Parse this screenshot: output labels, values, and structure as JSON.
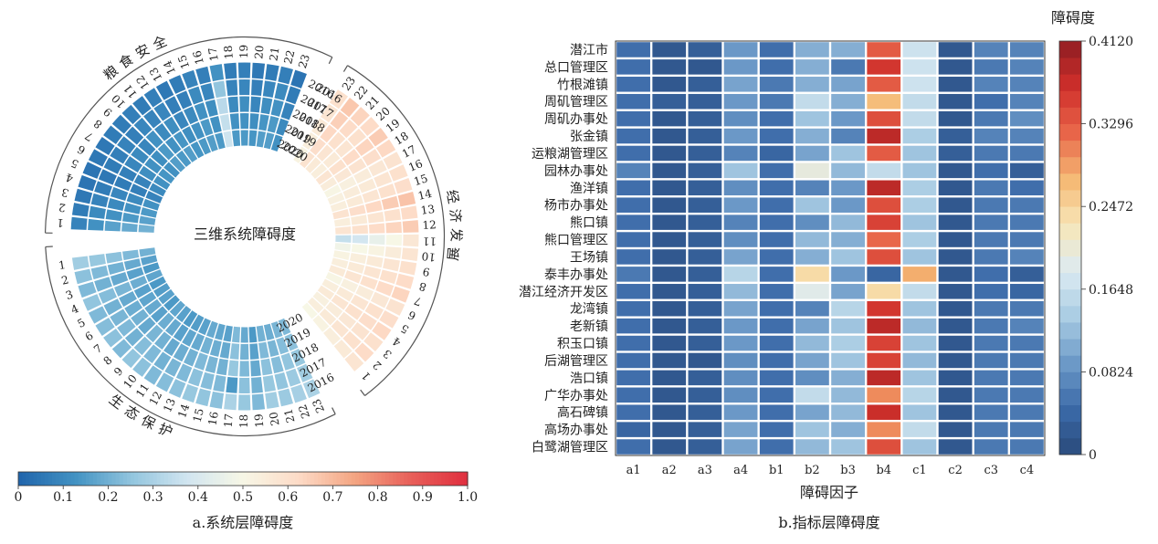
{
  "left_panel": {
    "center_title": "三维系统障碍度",
    "caption": "a.系统层障碍度",
    "colorbar_ticks": [
      "0",
      "0.1",
      "0.2",
      "0.3",
      "0.4",
      "0.5",
      "0.6",
      "0.7",
      "0.8",
      "0.9",
      "1.0"
    ],
    "sector_titles": [
      "粮食安全",
      "经济发展",
      "生态保护"
    ],
    "year_labels": [
      "2016",
      "2017",
      "2018",
      "2019",
      "2020"
    ],
    "colormap": [
      "#2166ac",
      "#4393c3",
      "#92c5de",
      "#d1e5f0",
      "#f7f7e6",
      "#fddbc7",
      "#f4a582",
      "#e8605a",
      "#e0303f"
    ]
  },
  "right_panel": {
    "caption": "b.指标层障碍度",
    "xlabel": "障碍因子",
    "colorbar_title": "障碍度",
    "colorbar_ticks": [
      "0",
      "0.0824",
      "0.1648",
      "0.2472",
      "0.3296",
      "0.4120"
    ],
    "colormap": [
      "#2a4a7b",
      "#3b6aa8",
      "#6d9ac8",
      "#a9cce3",
      "#dcebf2",
      "#f7e6b8",
      "#f5b873",
      "#e8664a",
      "#cf2f2b",
      "#8f1d22"
    ]
  },
  "chart_data": [
    {
      "type": "heatmap",
      "title": "a.系统层障碍度",
      "subtype": "circular heatmap",
      "sectors": [
        "粮食安全",
        "经济发展",
        "生态保护"
      ],
      "segments": [
        "1",
        "2",
        "3",
        "4",
        "5",
        "6",
        "7",
        "8",
        "9",
        "10",
        "11",
        "12",
        "13",
        "14",
        "15",
        "16",
        "17",
        "18",
        "19",
        "20",
        "21",
        "22",
        "23"
      ],
      "rings": [
        "2016",
        "2017",
        "2018",
        "2019",
        "2020"
      ],
      "value_range": [
        0,
        1.0
      ],
      "values": {
        "粮食安全": [
          [
            0.08,
            0.06,
            0.05,
            0.04,
            0.04,
            0.05,
            0.05,
            0.06,
            0.06,
            0.07,
            0.06,
            0.07,
            0.05,
            0.06,
            0.08,
            0.07,
            0.12,
            0.06,
            0.07,
            0.05,
            0.06,
            0.07,
            0.04
          ],
          [
            0.12,
            0.1,
            0.08,
            0.06,
            0.05,
            0.06,
            0.07,
            0.08,
            0.07,
            0.09,
            0.08,
            0.09,
            0.07,
            0.07,
            0.1,
            0.09,
            0.25,
            0.08,
            0.09,
            0.07,
            0.09,
            0.1,
            0.06
          ],
          [
            0.16,
            0.12,
            0.1,
            0.09,
            0.06,
            0.07,
            0.09,
            0.1,
            0.09,
            0.12,
            0.1,
            0.11,
            0.09,
            0.1,
            0.12,
            0.11,
            0.33,
            0.1,
            0.11,
            0.09,
            0.11,
            0.12,
            0.08
          ],
          [
            0.18,
            0.14,
            0.12,
            0.1,
            0.07,
            0.08,
            0.11,
            0.12,
            0.11,
            0.14,
            0.12,
            0.13,
            0.11,
            0.12,
            0.14,
            0.12,
            0.35,
            0.12,
            0.12,
            0.11,
            0.13,
            0.14,
            0.1
          ],
          [
            0.2,
            0.16,
            0.14,
            0.12,
            0.08,
            0.1,
            0.12,
            0.13,
            0.12,
            0.15,
            0.14,
            0.15,
            0.13,
            0.14,
            0.15,
            0.14,
            0.37,
            0.14,
            0.14,
            0.13,
            0.15,
            0.15,
            0.12
          ]
        ],
        "经济发展": [
          [
            0.58,
            0.62,
            0.6,
            0.63,
            0.61,
            0.59,
            0.64,
            0.62,
            0.6,
            0.58,
            0.57,
            0.66,
            0.62,
            0.68,
            0.61,
            0.6,
            0.59,
            0.63,
            0.66,
            0.62,
            0.64,
            0.67,
            0.6
          ],
          [
            0.56,
            0.6,
            0.59,
            0.61,
            0.6,
            0.57,
            0.62,
            0.6,
            0.58,
            0.55,
            0.5,
            0.64,
            0.6,
            0.66,
            0.6,
            0.58,
            0.57,
            0.61,
            0.64,
            0.6,
            0.62,
            0.65,
            0.58
          ],
          [
            0.54,
            0.58,
            0.57,
            0.6,
            0.58,
            0.55,
            0.6,
            0.58,
            0.56,
            0.52,
            0.45,
            0.62,
            0.58,
            0.63,
            0.58,
            0.56,
            0.55,
            0.59,
            0.62,
            0.58,
            0.6,
            0.63,
            0.56
          ],
          [
            0.52,
            0.56,
            0.55,
            0.58,
            0.56,
            0.53,
            0.58,
            0.56,
            0.54,
            0.5,
            0.38,
            0.6,
            0.56,
            0.61,
            0.56,
            0.55,
            0.53,
            0.57,
            0.6,
            0.56,
            0.58,
            0.61,
            0.54
          ],
          [
            0.5,
            0.54,
            0.53,
            0.56,
            0.54,
            0.51,
            0.56,
            0.54,
            0.52,
            0.48,
            0.35,
            0.58,
            0.54,
            0.59,
            0.54,
            0.53,
            0.51,
            0.55,
            0.58,
            0.54,
            0.56,
            0.59,
            0.52
          ]
        ],
        "生态保护": [
          [
            0.28,
            0.24,
            0.22,
            0.25,
            0.22,
            0.23,
            0.24,
            0.22,
            0.25,
            0.24,
            0.22,
            0.23,
            0.24,
            0.26,
            0.25,
            0.24,
            0.3,
            0.26,
            0.22,
            0.28,
            0.27,
            0.29,
            0.3
          ],
          [
            0.26,
            0.22,
            0.2,
            0.23,
            0.2,
            0.21,
            0.22,
            0.2,
            0.23,
            0.22,
            0.2,
            0.21,
            0.22,
            0.24,
            0.23,
            0.22,
            0.14,
            0.24,
            0.2,
            0.26,
            0.25,
            0.27,
            0.28
          ],
          [
            0.24,
            0.2,
            0.18,
            0.21,
            0.18,
            0.19,
            0.2,
            0.18,
            0.21,
            0.2,
            0.18,
            0.19,
            0.2,
            0.22,
            0.21,
            0.2,
            0.26,
            0.22,
            0.18,
            0.24,
            0.23,
            0.25,
            0.26
          ],
          [
            0.22,
            0.18,
            0.16,
            0.19,
            0.16,
            0.17,
            0.18,
            0.16,
            0.19,
            0.18,
            0.16,
            0.17,
            0.18,
            0.2,
            0.19,
            0.18,
            0.24,
            0.2,
            0.16,
            0.22,
            0.21,
            0.23,
            0.24
          ],
          [
            0.2,
            0.16,
            0.14,
            0.17,
            0.14,
            0.15,
            0.16,
            0.14,
            0.17,
            0.16,
            0.14,
            0.15,
            0.16,
            0.18,
            0.17,
            0.16,
            0.22,
            0.18,
            0.14,
            0.2,
            0.19,
            0.21,
            0.22
          ]
        ]
      }
    },
    {
      "type": "heatmap",
      "title": "b.指标层障碍度",
      "xlabel": "障碍因子",
      "legend_title": "障碍度",
      "value_range": [
        0,
        0.412
      ],
      "columns": [
        "a1",
        "a2",
        "a3",
        "a4",
        "b1",
        "b2",
        "b3",
        "b4",
        "c1",
        "c2",
        "c3",
        "c4"
      ],
      "rows": [
        "潜江市",
        "总口管理区",
        "竹根滩镇",
        "周矶管理区",
        "周矶办事处",
        "张金镇",
        "运粮湖管理区",
        "园林办事处",
        "渔洋镇",
        "杨市办事处",
        "熊口镇",
        "熊口管理区",
        "王场镇",
        "泰丰办事处",
        "潜江经济开发区",
        "龙湾镇",
        "老新镇",
        "积玉口镇",
        "后湖管理区",
        "浩口镇",
        "广华办事处",
        "高石碑镇",
        "高场办事处",
        "白鹭湖管理区"
      ],
      "values": [
        [
          0.05,
          0.02,
          0.03,
          0.09,
          0.05,
          0.11,
          0.11,
          0.33,
          0.17,
          0.02,
          0.07,
          0.07
        ],
        [
          0.05,
          0.02,
          0.02,
          0.09,
          0.05,
          0.11,
          0.06,
          0.36,
          0.17,
          0.02,
          0.06,
          0.07
        ],
        [
          0.05,
          0.02,
          0.03,
          0.1,
          0.06,
          0.11,
          0.1,
          0.33,
          0.17,
          0.02,
          0.07,
          0.07
        ],
        [
          0.05,
          0.03,
          0.03,
          0.09,
          0.06,
          0.16,
          0.11,
          0.27,
          0.16,
          0.02,
          0.05,
          0.07
        ],
        [
          0.05,
          0.02,
          0.03,
          0.08,
          0.05,
          0.13,
          0.09,
          0.34,
          0.16,
          0.02,
          0.06,
          0.08
        ],
        [
          0.05,
          0.02,
          0.03,
          0.09,
          0.05,
          0.11,
          0.07,
          0.38,
          0.14,
          0.03,
          0.07,
          0.07
        ],
        [
          0.05,
          0.02,
          0.03,
          0.07,
          0.04,
          0.1,
          0.13,
          0.33,
          0.13,
          0.03,
          0.06,
          0.06
        ],
        [
          0.07,
          0.02,
          0.03,
          0.13,
          0.05,
          0.2,
          0.12,
          0.16,
          0.13,
          0.02,
          0.05,
          0.03
        ],
        [
          0.05,
          0.02,
          0.03,
          0.08,
          0.05,
          0.07,
          0.09,
          0.38,
          0.14,
          0.02,
          0.06,
          0.05
        ],
        [
          0.05,
          0.02,
          0.03,
          0.09,
          0.05,
          0.13,
          0.09,
          0.34,
          0.14,
          0.02,
          0.06,
          0.06
        ],
        [
          0.05,
          0.02,
          0.03,
          0.07,
          0.05,
          0.08,
          0.12,
          0.35,
          0.13,
          0.02,
          0.06,
          0.06
        ],
        [
          0.05,
          0.02,
          0.03,
          0.08,
          0.05,
          0.12,
          0.11,
          0.32,
          0.14,
          0.02,
          0.06,
          0.06
        ],
        [
          0.05,
          0.02,
          0.03,
          0.1,
          0.05,
          0.11,
          0.13,
          0.34,
          0.13,
          0.02,
          0.06,
          0.07
        ],
        [
          0.06,
          0.02,
          0.03,
          0.15,
          0.05,
          0.24,
          0.09,
          0.04,
          0.28,
          0.02,
          0.05,
          0.03
        ],
        [
          0.05,
          0.02,
          0.03,
          0.12,
          0.05,
          0.19,
          0.1,
          0.24,
          0.16,
          0.02,
          0.05,
          0.04
        ],
        [
          0.05,
          0.02,
          0.03,
          0.1,
          0.05,
          0.07,
          0.15,
          0.36,
          0.13,
          0.02,
          0.06,
          0.06
        ],
        [
          0.05,
          0.02,
          0.03,
          0.09,
          0.05,
          0.1,
          0.13,
          0.38,
          0.12,
          0.02,
          0.06,
          0.07
        ],
        [
          0.05,
          0.02,
          0.03,
          0.09,
          0.05,
          0.12,
          0.14,
          0.35,
          0.13,
          0.02,
          0.06,
          0.06
        ],
        [
          0.05,
          0.02,
          0.02,
          0.08,
          0.05,
          0.1,
          0.13,
          0.35,
          0.12,
          0.02,
          0.06,
          0.06
        ],
        [
          0.05,
          0.02,
          0.03,
          0.08,
          0.05,
          0.08,
          0.11,
          0.38,
          0.13,
          0.02,
          0.06,
          0.06
        ],
        [
          0.05,
          0.02,
          0.03,
          0.08,
          0.05,
          0.16,
          0.12,
          0.3,
          0.15,
          0.02,
          0.06,
          0.06
        ],
        [
          0.05,
          0.02,
          0.03,
          0.09,
          0.05,
          0.1,
          0.12,
          0.37,
          0.13,
          0.02,
          0.06,
          0.06
        ],
        [
          0.04,
          0.02,
          0.03,
          0.1,
          0.05,
          0.13,
          0.11,
          0.3,
          0.16,
          0.02,
          0.06,
          0.06
        ],
        [
          0.05,
          0.02,
          0.03,
          0.1,
          0.05,
          0.12,
          0.13,
          0.34,
          0.13,
          0.02,
          0.06,
          0.06
        ]
      ]
    }
  ]
}
